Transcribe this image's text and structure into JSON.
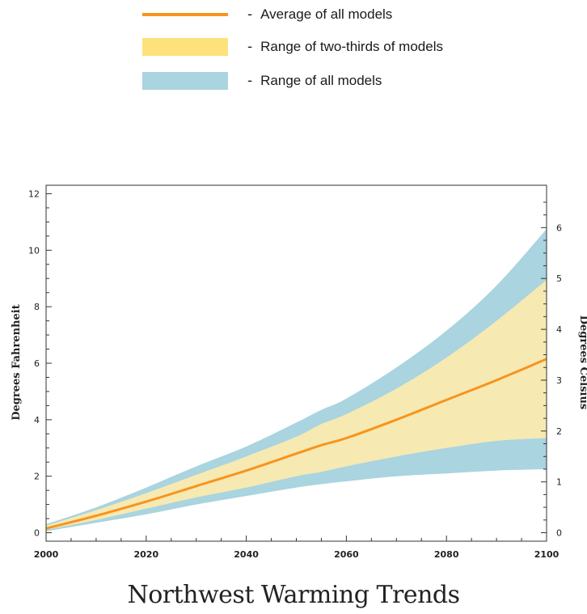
{
  "legend": [
    {
      "dash": "-",
      "label": "Average of all models",
      "kind": "line",
      "color": "#f7941d"
    },
    {
      "dash": "-",
      "label": "Range of two-thirds of models",
      "kind": "box",
      "color": "#fde17a"
    },
    {
      "dash": "-",
      "label": "Range of all models",
      "kind": "box",
      "color": "#a9d4e0"
    }
  ],
  "chart_data": {
    "type": "area",
    "title": "Northwest Warming Trends",
    "xlabel": "",
    "ylabel": "Degrees Fahrenheit",
    "y2label": "Degrees Celsius",
    "xlim": [
      2000,
      2100
    ],
    "ylim": [
      -0.3,
      12.3
    ],
    "xticks": [
      "2000",
      "2020",
      "2040",
      "2060",
      "2080",
      "2100"
    ],
    "yticks_f": [
      "0",
      "2",
      "4",
      "6",
      "8",
      "10",
      "12"
    ],
    "yticks_c": [
      "0",
      "1",
      "2",
      "3",
      "4",
      "5",
      "6"
    ],
    "grid": false,
    "x": [
      2000,
      2010,
      2020,
      2030,
      2040,
      2050,
      2055,
      2060,
      2070,
      2080,
      2090,
      2100
    ],
    "series": [
      {
        "name": "Range of all models (upper)",
        "values": [
          0.3,
          0.9,
          1.6,
          2.35,
          3.05,
          3.9,
          4.35,
          4.75,
          5.85,
          7.15,
          8.75,
          10.75
        ]
      },
      {
        "name": "Range of all models (lower)",
        "values": [
          0.05,
          0.35,
          0.65,
          1.0,
          1.3,
          1.6,
          1.72,
          1.82,
          2.0,
          2.1,
          2.2,
          2.25
        ]
      },
      {
        "name": "Range of two-thirds of models (upper)",
        "values": [
          0.25,
          0.8,
          1.4,
          2.05,
          2.7,
          3.4,
          3.85,
          4.2,
          5.1,
          6.2,
          7.5,
          8.95
        ]
      },
      {
        "name": "Range of two-thirds of models (lower)",
        "values": [
          0.1,
          0.45,
          0.85,
          1.25,
          1.6,
          2.0,
          2.15,
          2.35,
          2.7,
          3.0,
          3.25,
          3.35
        ]
      },
      {
        "name": "Average of all models",
        "values": [
          0.15,
          0.6,
          1.1,
          1.65,
          2.2,
          2.8,
          3.1,
          3.35,
          4.0,
          4.7,
          5.4,
          6.15
        ]
      }
    ],
    "colors": {
      "all_range": "#a9d4e0",
      "two_thirds_range": "#f6e9b2",
      "average": "#f7941d"
    }
  }
}
